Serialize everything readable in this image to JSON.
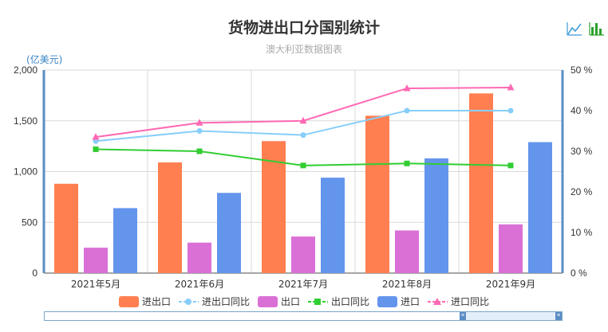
{
  "title": "货物进出口分国别统计",
  "subtitle": "澳大利亚数据图表",
  "y_unit_label": "(亿美元)",
  "toolbox": {
    "line_icon": "line-chart-icon",
    "bar_icon": "bar-chart-icon"
  },
  "colors": {
    "import_export": "#ff7f50",
    "import_export_yoy": "#87cefa",
    "export": "#da70d6",
    "export_yoy": "#32cd32",
    "import": "#6495ed",
    "import_yoy": "#ff69b4",
    "axis": "#5a8dc4"
  },
  "chart_data": {
    "type": "bar",
    "categories": [
      "2021年5月",
      "2021年6月",
      "2021年7月",
      "2021年8月",
      "2021年9月"
    ],
    "y_left": {
      "min": 0,
      "max": 2000,
      "ticks": [
        0,
        500,
        1000,
        1500,
        2000
      ],
      "tick_labels": [
        "0",
        "500",
        "1,000",
        "1,500",
        "2,000"
      ]
    },
    "y_right": {
      "min": 0,
      "max": 50,
      "ticks": [
        0,
        10,
        20,
        30,
        40,
        50
      ],
      "tick_labels": [
        "0 %",
        "10 %",
        "20 %",
        "30 %",
        "40 %",
        "50 %"
      ]
    },
    "bar_series": [
      {
        "name": "进出口",
        "values": [
          880,
          1090,
          1300,
          1550,
          1770
        ]
      },
      {
        "name": "出口",
        "values": [
          250,
          300,
          360,
          420,
          480
        ]
      },
      {
        "name": "进口",
        "values": [
          640,
          790,
          940,
          1130,
          1290
        ]
      }
    ],
    "line_series": [
      {
        "name": "进出口同比",
        "values": [
          32.5,
          35.0,
          34.0,
          40.0,
          40.0
        ],
        "marker": "circle"
      },
      {
        "name": "出口同比",
        "values": [
          30.5,
          30.0,
          26.5,
          27.0,
          26.5
        ],
        "marker": "square"
      },
      {
        "name": "进口同比",
        "values": [
          33.5,
          37.0,
          37.5,
          45.5,
          45.7
        ],
        "marker": "triangle"
      }
    ],
    "legend": [
      "进出口",
      "进出口同比",
      "出口",
      "出口同比",
      "进口",
      "进口同比"
    ],
    "legend_position": "bottom",
    "grid": true
  }
}
